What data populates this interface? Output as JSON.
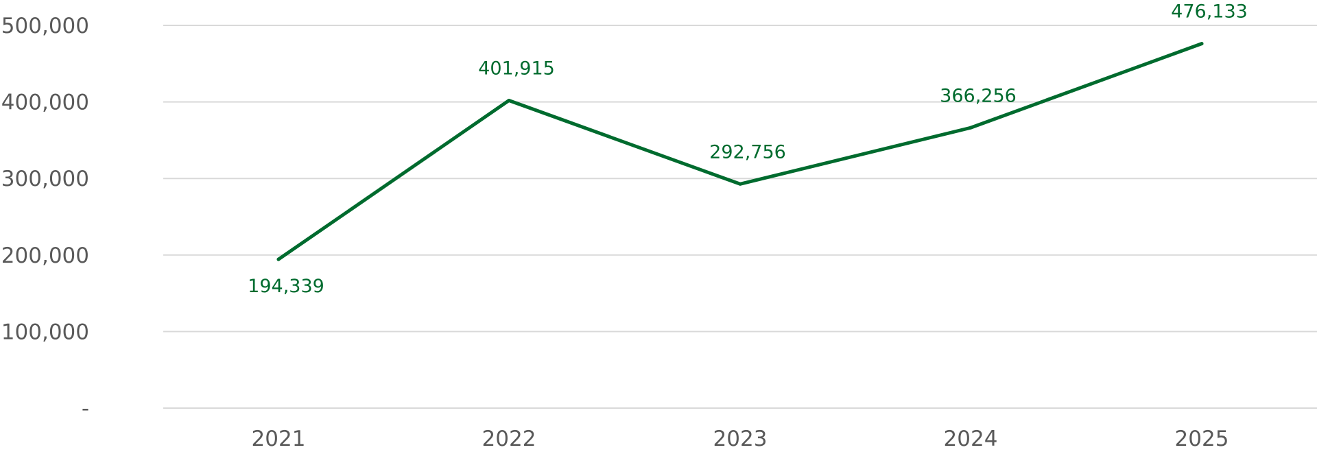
{
  "chart_data": {
    "type": "line",
    "title": "",
    "xlabel": "",
    "ylabel": "",
    "categories": [
      "2021",
      "2022",
      "2023",
      "2024",
      "2025"
    ],
    "series": [
      {
        "values": [
          194339,
          401915,
          292756,
          366256,
          476133
        ],
        "data_labels": [
          "194,339",
          "401,915",
          "292,756",
          "366,256",
          "476,133"
        ],
        "label_placement": [
          "below",
          "above",
          "above",
          "above",
          "above"
        ]
      }
    ],
    "ylim": [
      0,
      500000
    ],
    "yticks": [
      0,
      100000,
      200000,
      300000,
      400000,
      500000
    ],
    "ytick_labels": [
      "-",
      "100,000",
      "200,000",
      "300,000",
      "400,000",
      "500,000"
    ],
    "grid": true,
    "legend": "none"
  },
  "colors": {
    "series": "#006b2e",
    "gridline": "#d9d9d9",
    "axis_text": "#595959"
  }
}
